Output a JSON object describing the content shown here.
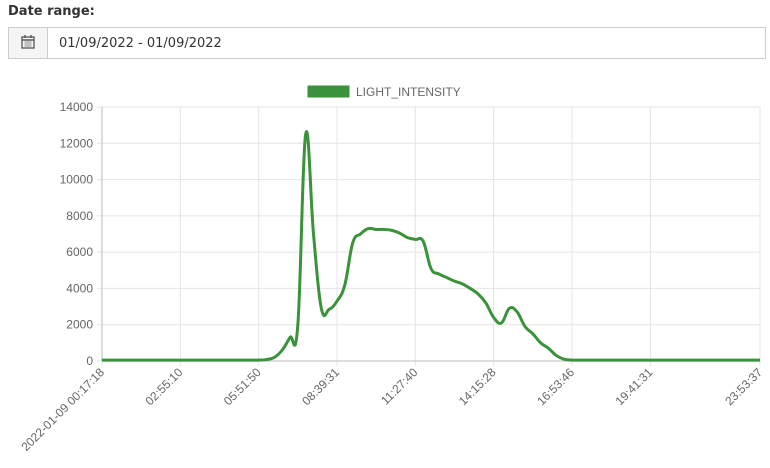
{
  "date_range": {
    "label": "Date range:",
    "value": "01/09/2022 - 01/09/2022"
  },
  "chart_data": {
    "type": "line",
    "categories": [
      "2022-01-09 00:17:18",
      null,
      null,
      null,
      null,
      null,
      null,
      null,
      null,
      null,
      "02:55:10",
      null,
      null,
      null,
      null,
      null,
      null,
      null,
      null,
      null,
      "05:51:50",
      null,
      null,
      null,
      null,
      null,
      null,
      null,
      null,
      null,
      "08:39:31",
      null,
      null,
      null,
      null,
      null,
      null,
      null,
      null,
      null,
      "11:27:40",
      null,
      null,
      null,
      null,
      null,
      null,
      null,
      null,
      null,
      "14:15:28",
      null,
      null,
      null,
      null,
      null,
      null,
      null,
      null,
      null,
      "16:53:46",
      null,
      null,
      null,
      null,
      null,
      null,
      null,
      null,
      null,
      "19:41:31",
      null,
      null,
      null,
      null,
      null,
      null,
      null,
      null,
      null,
      null,
      null,
      null,
      null,
      "23:53:37"
    ],
    "series": [
      {
        "name": "LIGHT_INTENSITY",
        "color": "#3a923a",
        "values": [
          50,
          50,
          50,
          50,
          50,
          50,
          50,
          50,
          50,
          50,
          50,
          50,
          50,
          50,
          50,
          50,
          50,
          50,
          50,
          50,
          50,
          80,
          200,
          600,
          1300,
          2000,
          12500,
          7000,
          2900,
          2850,
          3300,
          4200,
          6500,
          7000,
          7300,
          7250,
          7250,
          7200,
          7050,
          6800,
          6700,
          6600,
          5100,
          4800,
          4600,
          4400,
          4250,
          4000,
          3700,
          3200,
          2400,
          2100,
          2900,
          2700,
          1900,
          1500,
          1000,
          700,
          300,
          100,
          50,
          50,
          50,
          50,
          50,
          50,
          50,
          50,
          50,
          50,
          50,
          50,
          50,
          50,
          50,
          50,
          50,
          50,
          50,
          50,
          50,
          50,
          50,
          50,
          50
        ]
      }
    ],
    "ylim": [
      0,
      14000
    ],
    "yticks": [
      0,
      2000,
      4000,
      6000,
      8000,
      10000,
      12000,
      14000
    ],
    "grid": true
  }
}
